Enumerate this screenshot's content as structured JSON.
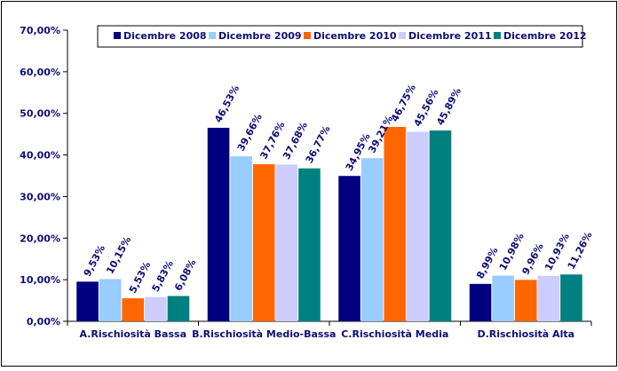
{
  "chart_data": {
    "type": "bar",
    "categories": [
      "A.Rischiosità Bassa",
      "B.Rischiosità Medio-Bassa",
      "C.Rischiosità Media",
      "D.Rischiosità Alta"
    ],
    "series": [
      {
        "name": "Dicembre 2008",
        "color": "#000080",
        "values": [
          9.53,
          46.53,
          34.95,
          8.99
        ],
        "labels": [
          "9,53%",
          "46,53%",
          "34,95%",
          "8,99%"
        ]
      },
      {
        "name": "Dicembre 2009",
        "color": "#99ccff",
        "values": [
          10.15,
          39.66,
          39.21,
          10.98
        ],
        "labels": [
          "10,15%",
          "39,66%",
          "39,21%",
          "10,98%"
        ]
      },
      {
        "name": "Dicembre 2010",
        "color": "#ff6600",
        "values": [
          5.53,
          37.76,
          46.75,
          9.96
        ],
        "labels": [
          "5,53%",
          "37,76%",
          "46,75%",
          "9,96%"
        ]
      },
      {
        "name": "Dicembre 2011",
        "color": "#ccccff",
        "values": [
          5.83,
          37.68,
          45.56,
          10.93
        ],
        "labels": [
          "5,83%",
          "37,68%",
          "45,56%",
          "10,93%"
        ]
      },
      {
        "name": "Dicembre 2012",
        "color": "#008080",
        "values": [
          6.08,
          36.77,
          45.89,
          11.26
        ],
        "labels": [
          "6,08%",
          "36,77%",
          "45,89%",
          "11,26%"
        ]
      }
    ],
    "ylim": [
      0,
      70
    ],
    "yticks": [
      0,
      10,
      20,
      30,
      40,
      50,
      60,
      70
    ],
    "ytick_labels": [
      "0,00%",
      "10,00%",
      "20,00%",
      "30,00%",
      "40,00%",
      "50,00%",
      "60,00%",
      "70,00%"
    ],
    "legend_position": "top-right",
    "grid": false,
    "title": "",
    "xlabel": "",
    "ylabel": ""
  }
}
